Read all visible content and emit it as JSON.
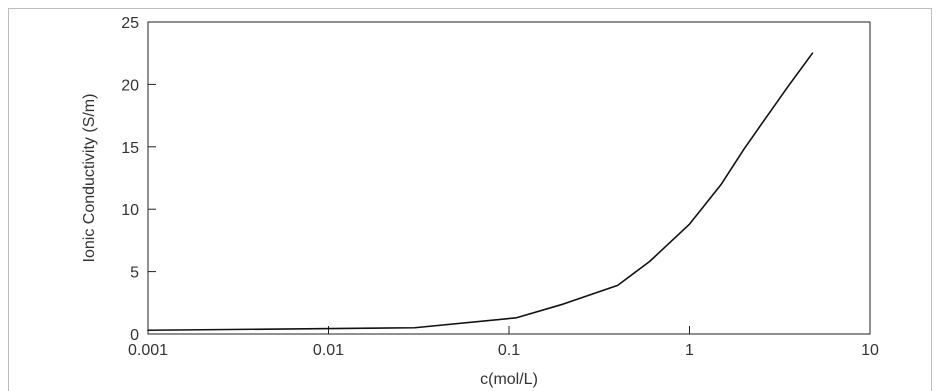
{
  "chart_data": {
    "type": "line",
    "xlabel": "c(mol/L)",
    "ylabel": "Ionic Conductivity (S/m)",
    "xscale": "log",
    "xlim": [
      0.001,
      10
    ],
    "ylim": [
      0,
      25
    ],
    "grid": false,
    "legend": "none",
    "xticks": [
      {
        "value": 0.001,
        "label": "0.001"
      },
      {
        "value": 0.01,
        "label": "0.01"
      },
      {
        "value": 0.1,
        "label": "0.1"
      },
      {
        "value": 1,
        "label": "1"
      },
      {
        "value": 10,
        "label": "10"
      }
    ],
    "yticks": [
      {
        "value": 0,
        "label": "0"
      },
      {
        "value": 5,
        "label": "5"
      },
      {
        "value": 10,
        "label": "10"
      },
      {
        "value": 15,
        "label": "15"
      },
      {
        "value": 20,
        "label": "20"
      },
      {
        "value": 25,
        "label": "25"
      }
    ],
    "series": [
      {
        "line_color": "#111111",
        "x": [
          0.001,
          0.03,
          0.11,
          0.2,
          0.4,
          0.6,
          1.0,
          1.5,
          2.0,
          2.5,
          3.5,
          4.8
        ],
        "y": [
          0.3,
          0.5,
          1.3,
          2.4,
          3.9,
          5.8,
          8.8,
          12.0,
          14.8,
          16.8,
          19.8,
          22.5
        ]
      }
    ]
  }
}
